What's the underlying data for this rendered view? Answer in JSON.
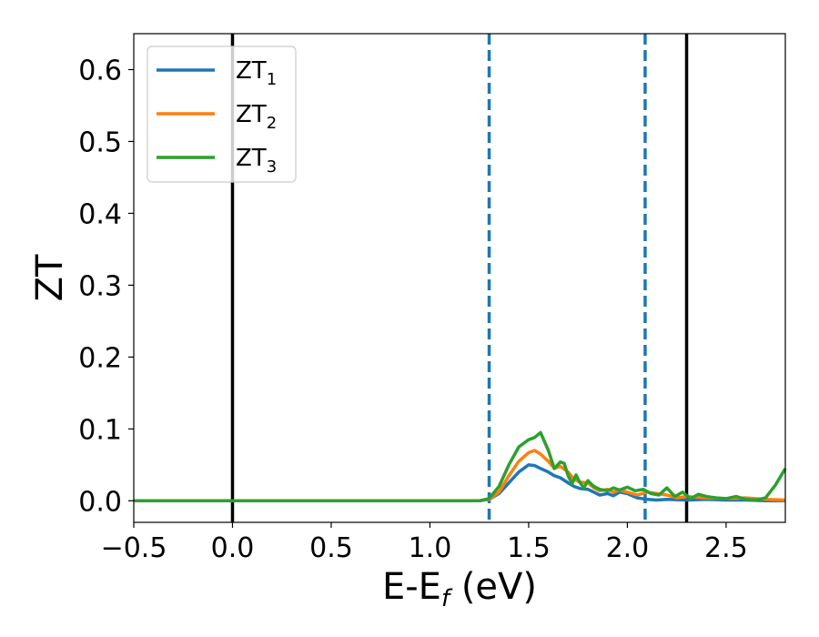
{
  "chart_data": {
    "type": "line",
    "title": "",
    "xlabel": "E-E",
    "xlabel_sub": "f",
    "xlabel_unit": " (eV)",
    "ylabel": "ZT",
    "xlim": [
      -0.5,
      2.8
    ],
    "ylim": [
      -0.03,
      0.65
    ],
    "xticks": [
      -0.5,
      0.0,
      0.5,
      1.0,
      1.5,
      2.0,
      2.5
    ],
    "xtick_labels": [
      "−0.5",
      "0.0",
      "0.5",
      "1.0",
      "1.5",
      "2.0",
      "2.5"
    ],
    "yticks": [
      0.0,
      0.1,
      0.2,
      0.3,
      0.4,
      0.5,
      0.6
    ],
    "ytick_labels": [
      "0.0",
      "0.1",
      "0.2",
      "0.3",
      "0.4",
      "0.5",
      "0.6"
    ],
    "grid": false,
    "legend_position": "upper-left",
    "vlines": [
      {
        "x": 0.0,
        "style": "solid",
        "color": "#000000"
      },
      {
        "x": 1.3,
        "style": "dashed",
        "color": "#1f77b4"
      },
      {
        "x": 2.09,
        "style": "dashed",
        "color": "#1f77b4"
      },
      {
        "x": 2.3,
        "style": "solid",
        "color": "#000000"
      }
    ],
    "series": [
      {
        "name": "ZT",
        "name_sub": "1",
        "color": "#1f77b4",
        "x": [
          -0.5,
          0.0,
          0.5,
          1.0,
          1.25,
          1.3,
          1.35,
          1.4,
          1.45,
          1.5,
          1.53,
          1.56,
          1.6,
          1.63,
          1.66,
          1.7,
          1.73,
          1.76,
          1.8,
          1.83,
          1.86,
          1.9,
          1.93,
          1.96,
          2.0,
          2.05,
          2.1,
          2.15,
          2.2,
          2.3,
          2.4,
          2.5,
          2.6,
          2.7,
          2.8
        ],
        "values": [
          0,
          0,
          0,
          0,
          0,
          0.002,
          0.01,
          0.025,
          0.04,
          0.05,
          0.049,
          0.045,
          0.04,
          0.035,
          0.032,
          0.025,
          0.02,
          0.017,
          0.016,
          0.012,
          0.008,
          0.01,
          0.007,
          0.012,
          0.01,
          0.004,
          0.002,
          0.001,
          0.002,
          0.001,
          0.002,
          0.001,
          0.001,
          0.0,
          0.0
        ]
      },
      {
        "name": "ZT",
        "name_sub": "2",
        "color": "#ff7f0e",
        "x": [
          -0.5,
          0.0,
          0.5,
          1.0,
          1.25,
          1.3,
          1.35,
          1.4,
          1.45,
          1.5,
          1.53,
          1.56,
          1.6,
          1.63,
          1.66,
          1.7,
          1.73,
          1.76,
          1.8,
          1.83,
          1.86,
          1.9,
          1.93,
          1.96,
          2.0,
          2.05,
          2.1,
          2.15,
          2.2,
          2.25,
          2.3,
          2.35,
          2.4,
          2.5,
          2.6,
          2.7,
          2.8
        ],
        "values": [
          0,
          0,
          0,
          0,
          0,
          0.002,
          0.012,
          0.035,
          0.055,
          0.067,
          0.07,
          0.065,
          0.055,
          0.045,
          0.048,
          0.04,
          0.03,
          0.026,
          0.025,
          0.018,
          0.014,
          0.016,
          0.012,
          0.015,
          0.012,
          0.008,
          0.012,
          0.01,
          0.008,
          0.004,
          0.006,
          0.005,
          0.004,
          0.003,
          0.004,
          0.002,
          0.001
        ]
      },
      {
        "name": "ZT",
        "name_sub": "3",
        "color": "#2ca02c",
        "x": [
          -0.5,
          0.0,
          0.5,
          1.0,
          1.25,
          1.3,
          1.35,
          1.4,
          1.45,
          1.5,
          1.53,
          1.56,
          1.6,
          1.63,
          1.66,
          1.68,
          1.7,
          1.72,
          1.74,
          1.76,
          1.78,
          1.8,
          1.83,
          1.86,
          1.9,
          1.93,
          1.96,
          2.0,
          2.04,
          2.08,
          2.12,
          2.16,
          2.2,
          2.24,
          2.28,
          2.32,
          2.36,
          2.4,
          2.45,
          2.5,
          2.55,
          2.6,
          2.65,
          2.7,
          2.75,
          2.8
        ],
        "values": [
          0,
          0,
          0,
          0,
          0,
          0.003,
          0.02,
          0.05,
          0.075,
          0.085,
          0.088,
          0.095,
          0.07,
          0.045,
          0.054,
          0.052,
          0.035,
          0.024,
          0.036,
          0.025,
          0.018,
          0.028,
          0.02,
          0.016,
          0.014,
          0.018,
          0.015,
          0.019,
          0.014,
          0.016,
          0.01,
          0.008,
          0.018,
          0.006,
          0.012,
          0.003,
          0.009,
          0.006,
          0.004,
          0.003,
          0.006,
          0.002,
          0.001,
          0.004,
          0.022,
          0.045
        ]
      }
    ]
  }
}
